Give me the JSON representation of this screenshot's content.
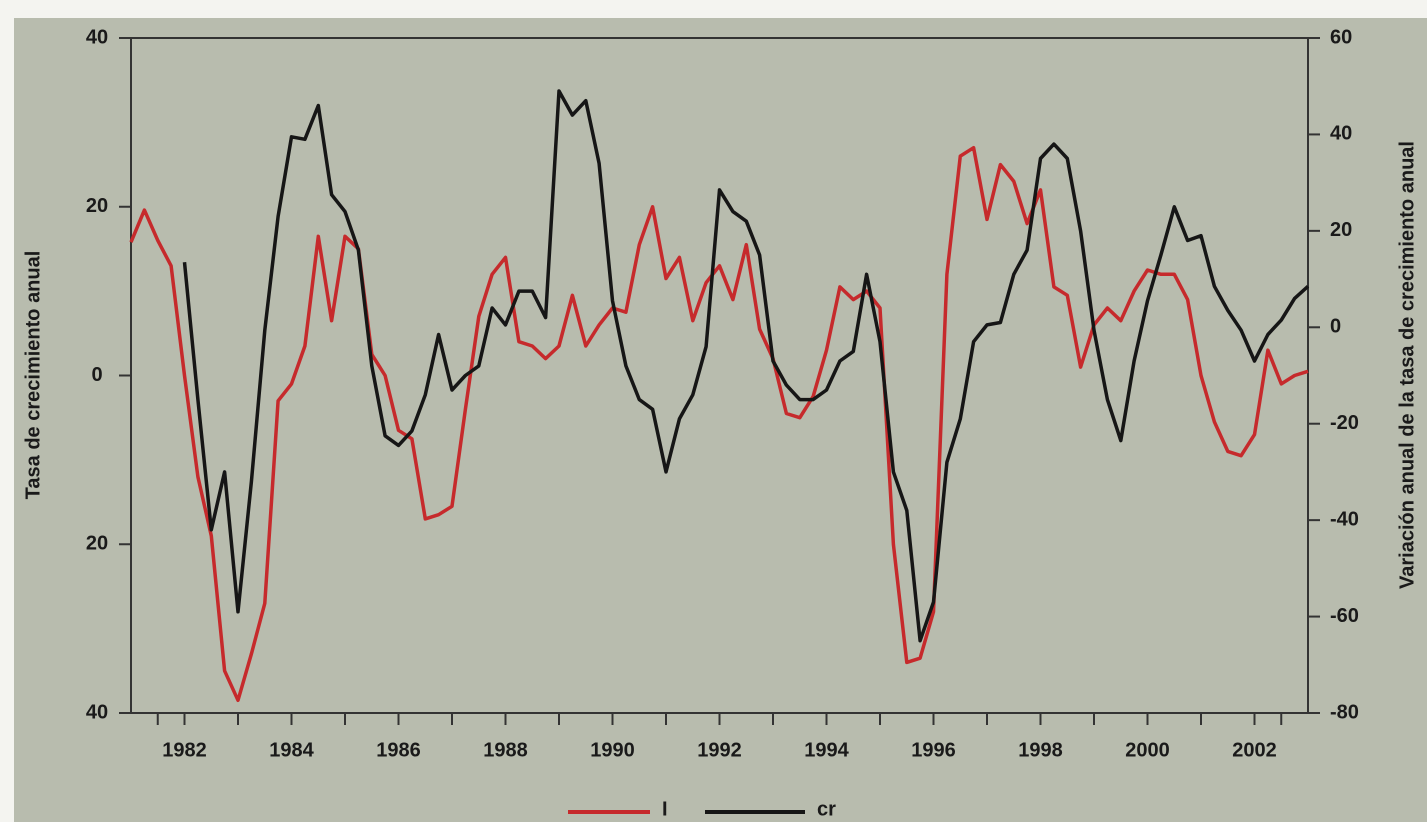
{
  "chart_data": {
    "type": "line",
    "ylabel": "Tasa de crecimiento anual",
    "y2label": "Variación anual de la tasa de crecimiento anual",
    "x": [
      1981,
      1981.25,
      1981.5,
      1981.75,
      1982,
      1982.25,
      1982.5,
      1982.75,
      1983,
      1983.25,
      1983.5,
      1983.75,
      1984,
      1984.25,
      1984.5,
      1984.75,
      1985,
      1985.25,
      1985.5,
      1985.75,
      1986,
      1986.25,
      1986.5,
      1986.75,
      1987,
      1987.25,
      1987.5,
      1987.75,
      1988,
      1988.25,
      1988.5,
      1988.75,
      1989,
      1989.25,
      1989.5,
      1989.75,
      1990,
      1990.25,
      1990.5,
      1990.75,
      1991,
      1991.25,
      1991.5,
      1991.75,
      1992,
      1992.25,
      1992.5,
      1992.75,
      1993,
      1993.25,
      1993.5,
      1993.75,
      1994,
      1994.25,
      1994.5,
      1994.75,
      1995,
      1995.25,
      1995.5,
      1995.75,
      1996,
      1996.25,
      1996.5,
      1996.75,
      1997,
      1997.25,
      1997.5,
      1997.75,
      1998,
      1998.25,
      1998.5,
      1998.75,
      1999,
      1999.25,
      1999.5,
      1999.75,
      2000,
      2000.25,
      2000.5,
      2000.75,
      2001,
      2001.25,
      2001.5,
      2001.75,
      2002,
      2002.25,
      2002.5,
      2002.75,
      2003
    ],
    "xlim": [
      1981,
      2003
    ],
    "xticks": [
      1982,
      1984,
      1986,
      1988,
      1990,
      1992,
      1994,
      1996,
      1998,
      2000,
      2002
    ],
    "ylim": [
      -40,
      40
    ],
    "yticks": [
      {
        "value": -40,
        "label": "40"
      },
      {
        "value": -20,
        "label": "20"
      },
      0,
      20,
      40
    ],
    "y2lim": [
      -80,
      60
    ],
    "y2ticks": [
      -80,
      -60,
      -40,
      -20,
      0,
      20,
      40,
      60
    ],
    "series": [
      {
        "name": "I",
        "color": "#c62a2c",
        "values": [
          15.8,
          19.6,
          16,
          13,
          0,
          -12,
          -19,
          -35,
          -38.5,
          -33,
          -27,
          -3,
          -1,
          3.5,
          16.5,
          6.5,
          16.5,
          15,
          2.5,
          0,
          -6.5,
          -7.5,
          -17,
          -16.5,
          -15.5,
          -4,
          7,
          12,
          14,
          4,
          3.5,
          2,
          3.5,
          9.5,
          3.5,
          6,
          8,
          7.5,
          15.5,
          20,
          11.5,
          14,
          6.5,
          11,
          13,
          9,
          15.5,
          5.5,
          2,
          -4.5,
          -5,
          -2.5,
          3,
          10.5,
          9,
          10,
          8,
          -20,
          -34,
          -33.5,
          -28,
          12,
          26,
          27,
          18.5,
          25,
          23,
          18,
          22,
          10.5,
          9.5,
          1,
          6,
          8,
          6.5,
          10,
          12.5,
          12,
          12,
          9,
          0,
          -5.5,
          -9,
          -9.5,
          -7,
          3,
          -1,
          0,
          0.5
        ]
      },
      {
        "name": "cr",
        "color": "#161616",
        "axis": "y2",
        "values": [
          null,
          null,
          null,
          null,
          13.5,
          -15,
          -42,
          -30,
          -59,
          -32,
          -0.6,
          23,
          39.5,
          39,
          46,
          27.5,
          24,
          16,
          -8,
          -22.5,
          -24.5,
          -21.5,
          -14,
          -1.5,
          -13,
          -10,
          -8,
          4,
          0.5,
          7.5,
          7.5,
          2,
          49,
          44,
          47,
          34,
          5.5,
          -8,
          -15,
          -17,
          -30,
          -19,
          -14,
          -4,
          28.5,
          24,
          22,
          15,
          -7,
          -12,
          -15,
          -15,
          -13,
          -7,
          -5,
          11,
          -3,
          -30,
          -38,
          -65,
          -57,
          -28,
          -19,
          -3,
          0.5,
          1,
          11,
          16,
          35,
          38,
          35,
          20,
          -0.6,
          -15,
          -23.5,
          -7,
          5.5,
          15,
          25,
          18,
          19,
          8.5,
          3.5,
          -0.6,
          -7,
          -1.5,
          1.5,
          6,
          8.5
        ]
      }
    ]
  }
}
